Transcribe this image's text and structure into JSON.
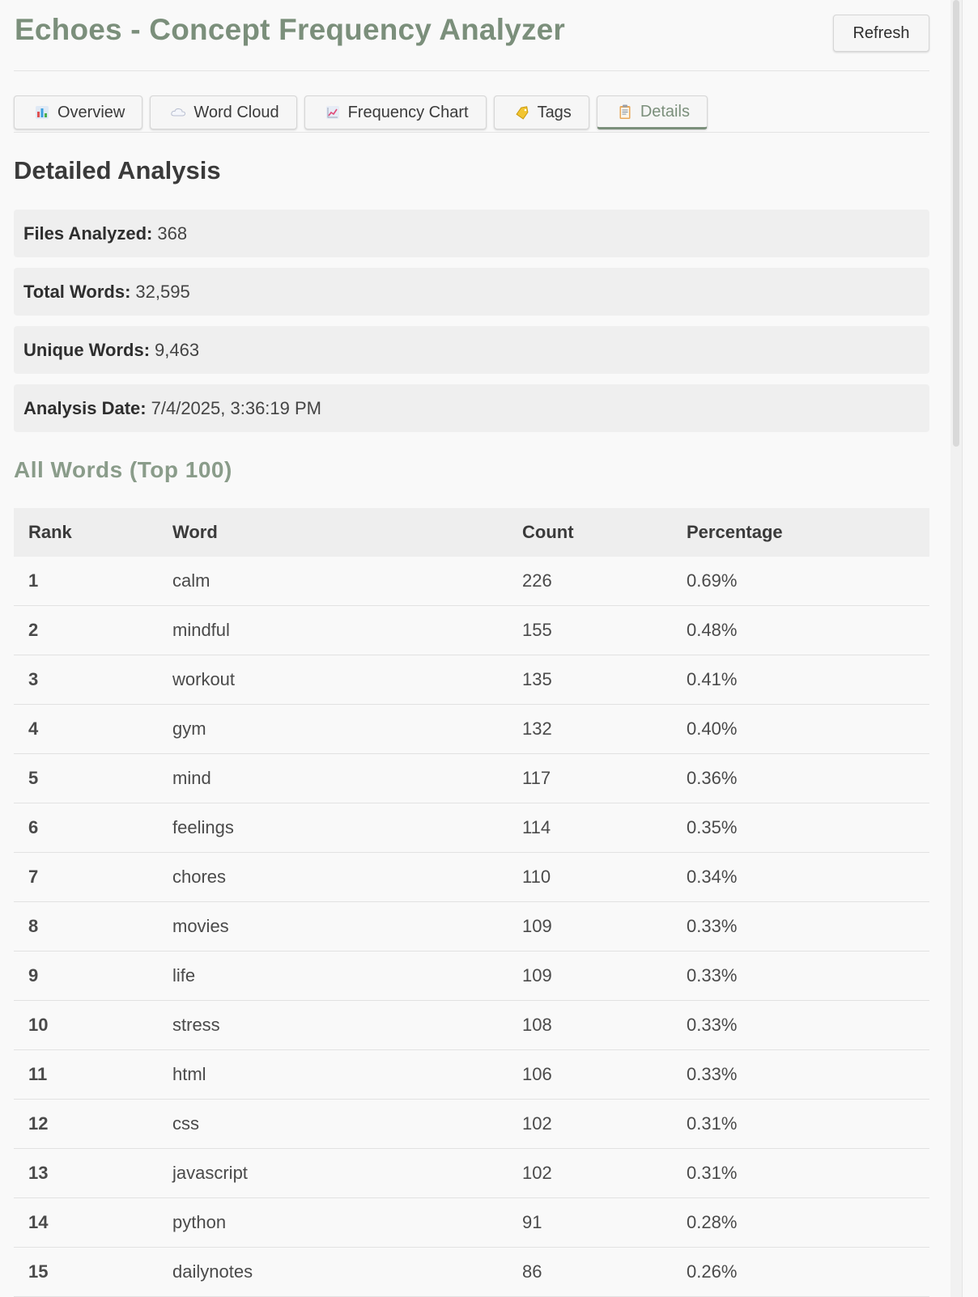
{
  "app": {
    "title": "Echoes - Concept Frequency Analyzer",
    "refresh_label": "Refresh"
  },
  "tabs": [
    {
      "label": "Overview",
      "icon": "bar-chart-icon"
    },
    {
      "label": "Word Cloud",
      "icon": "cloud-icon"
    },
    {
      "label": "Frequency Chart",
      "icon": "line-chart-icon"
    },
    {
      "label": "Tags",
      "icon": "tag-icon"
    },
    {
      "label": "Details",
      "icon": "clipboard-icon",
      "active": true
    }
  ],
  "details": {
    "title": "Detailed Analysis",
    "stats": [
      {
        "label": "Files Analyzed:",
        "value": "368"
      },
      {
        "label": "Total Words:",
        "value": "32,595"
      },
      {
        "label": "Unique Words:",
        "value": "9,463"
      },
      {
        "label": "Analysis Date:",
        "value": "7/4/2025, 3:36:19 PM"
      }
    ]
  },
  "words": {
    "title": "All Words (Top 100)",
    "columns": [
      "Rank",
      "Word",
      "Count",
      "Percentage"
    ],
    "rows": [
      [
        "1",
        "calm",
        "226",
        "0.69%"
      ],
      [
        "2",
        "mindful",
        "155",
        "0.48%"
      ],
      [
        "3",
        "workout",
        "135",
        "0.41%"
      ],
      [
        "4",
        "gym",
        "132",
        "0.40%"
      ],
      [
        "5",
        "mind",
        "117",
        "0.36%"
      ],
      [
        "6",
        "feelings",
        "114",
        "0.35%"
      ],
      [
        "7",
        "chores",
        "110",
        "0.34%"
      ],
      [
        "8",
        "movies",
        "109",
        "0.33%"
      ],
      [
        "9",
        "life",
        "109",
        "0.33%"
      ],
      [
        "10",
        "stress",
        "108",
        "0.33%"
      ],
      [
        "11",
        "html",
        "106",
        "0.33%"
      ],
      [
        "12",
        "css",
        "102",
        "0.31%"
      ],
      [
        "13",
        "javascript",
        "102",
        "0.31%"
      ],
      [
        "14",
        "python",
        "91",
        "0.28%"
      ],
      [
        "15",
        "dailynotes",
        "86",
        "0.26%"
      ]
    ]
  },
  "colors": {
    "accent": "#7b8f7b",
    "section_accent": "#8a9c8a",
    "stat_bg": "#efefef"
  }
}
